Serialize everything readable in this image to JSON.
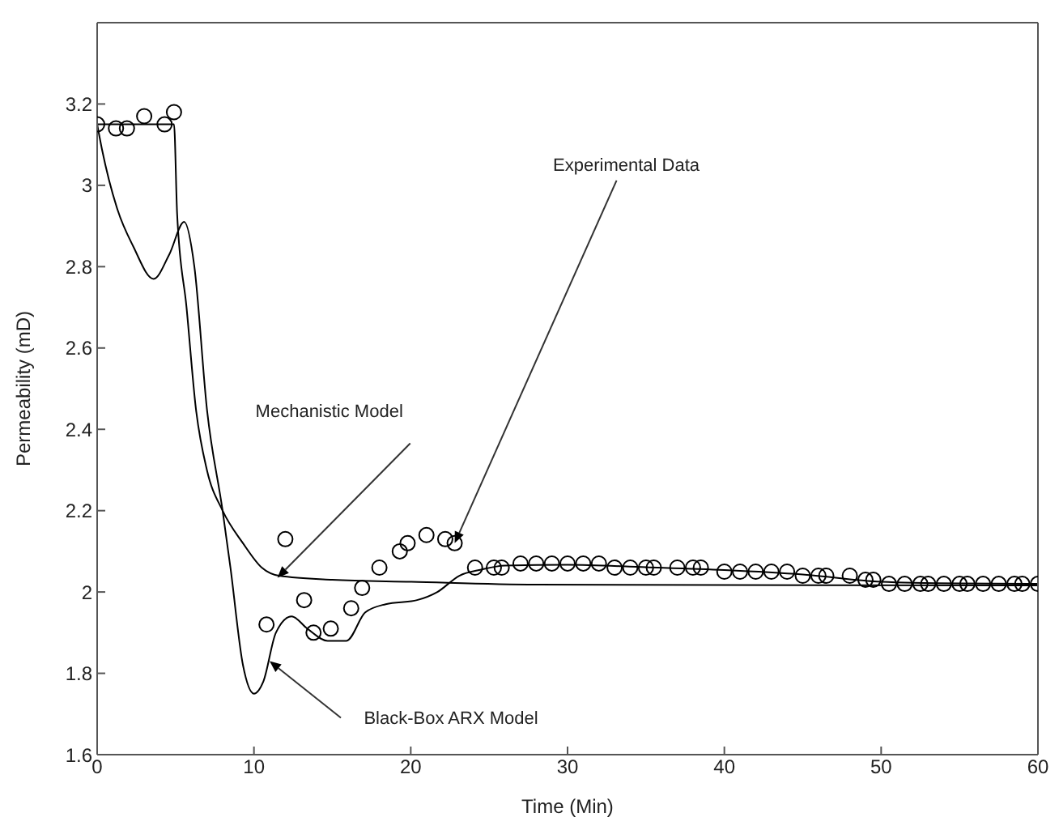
{
  "chart_data": {
    "type": "line",
    "xlabel": "Time (Min)",
    "ylabel": "Permeability (mD)",
    "xlim": [
      0,
      60
    ],
    "xticks": [
      0,
      10,
      20,
      30,
      40,
      50,
      60
    ],
    "ylim": [
      1.6,
      3.4
    ],
    "yticks": [
      1.6,
      1.8,
      2,
      2.2,
      2.4,
      2.6,
      2.8,
      3,
      3.2
    ],
    "grid": false,
    "legend": false,
    "series": [
      {
        "type": "scatter",
        "marker": "circle",
        "color": "#000000",
        "x": [
          0,
          1.2,
          1.9,
          3.0,
          4.3,
          4.9,
          10.8,
          12.0,
          13.2,
          13.8,
          14.9,
          16.2,
          16.9,
          18.0,
          19.3,
          19.8,
          21.0,
          22.2,
          22.8,
          24.1,
          25.3,
          25.8,
          27,
          28,
          29,
          30,
          31,
          32,
          33,
          34,
          35,
          35.5,
          37,
          38,
          38.5,
          40,
          41,
          42,
          43,
          44,
          45,
          46,
          46.5,
          48,
          49,
          49.5,
          50.5,
          51.5,
          52.5,
          53,
          54,
          55,
          55.5,
          56.5,
          57.5,
          58.5,
          59,
          60
        ],
        "values": [
          3.15,
          3.14,
          3.14,
          3.17,
          3.15,
          3.18,
          1.92,
          2.13,
          1.98,
          1.9,
          1.91,
          1.96,
          2.01,
          2.06,
          2.1,
          2.12,
          2.14,
          2.13,
          2.12,
          2.06,
          2.06,
          2.06,
          2.07,
          2.07,
          2.07,
          2.07,
          2.07,
          2.07,
          2.06,
          2.06,
          2.06,
          2.06,
          2.06,
          2.06,
          2.06,
          2.05,
          2.05,
          2.05,
          2.05,
          2.05,
          2.04,
          2.04,
          2.04,
          2.04,
          2.03,
          2.03,
          2.02,
          2.02,
          2.02,
          2.02,
          2.02,
          2.02,
          2.02,
          2.02,
          2.02,
          2.02,
          2.02,
          2.02
        ]
      },
      {
        "type": "line",
        "marker": "none",
        "line_style": "solid",
        "color": "#000000",
        "x": [
          0,
          4.9,
          5.1,
          5.7,
          6.3,
          7.0,
          8.0,
          9.3,
          10.5,
          11.6,
          15,
          20,
          28,
          60
        ],
        "values": [
          3.15,
          3.15,
          2.93,
          2.7,
          2.45,
          2.3,
          2.2,
          2.12,
          2.06,
          2.04,
          2.03,
          2.025,
          2.018,
          2.016
        ]
      },
      {
        "type": "line",
        "marker": "none",
        "line_style": "solid",
        "color": "#000000",
        "x": [
          0,
          0.3,
          1.3,
          2.3,
          3.6,
          4.6,
          5.55,
          6.2,
          7.0,
          8.0,
          8.5,
          9.3,
          10,
          10.6,
          11.4,
          12.4,
          13.4,
          14.7,
          15.9,
          17.1,
          18.4,
          20.4,
          21.7,
          23.1,
          24.5,
          26,
          30,
          35,
          40,
          45,
          50,
          55,
          60
        ],
        "values": [
          3.15,
          3.09,
          2.94,
          2.85,
          2.77,
          2.83,
          2.91,
          2.8,
          2.45,
          2.2,
          2.06,
          1.82,
          1.75,
          1.78,
          1.9,
          1.94,
          1.91,
          1.88,
          1.88,
          1.95,
          1.97,
          1.98,
          2.0,
          2.04,
          2.055,
          2.065,
          2.067,
          2.061,
          2.054,
          2.043,
          2.025,
          2.021,
          2.02
        ]
      }
    ],
    "annotations": [
      {
        "text": "Mechanistic Model",
        "x": 11.5,
        "y": 2.035
      },
      {
        "text": "Experimental Data",
        "x": 22.8,
        "y": 2.12
      },
      {
        "text": "Black-Box ARX Model",
        "x": 11.0,
        "y": 1.83
      }
    ]
  }
}
